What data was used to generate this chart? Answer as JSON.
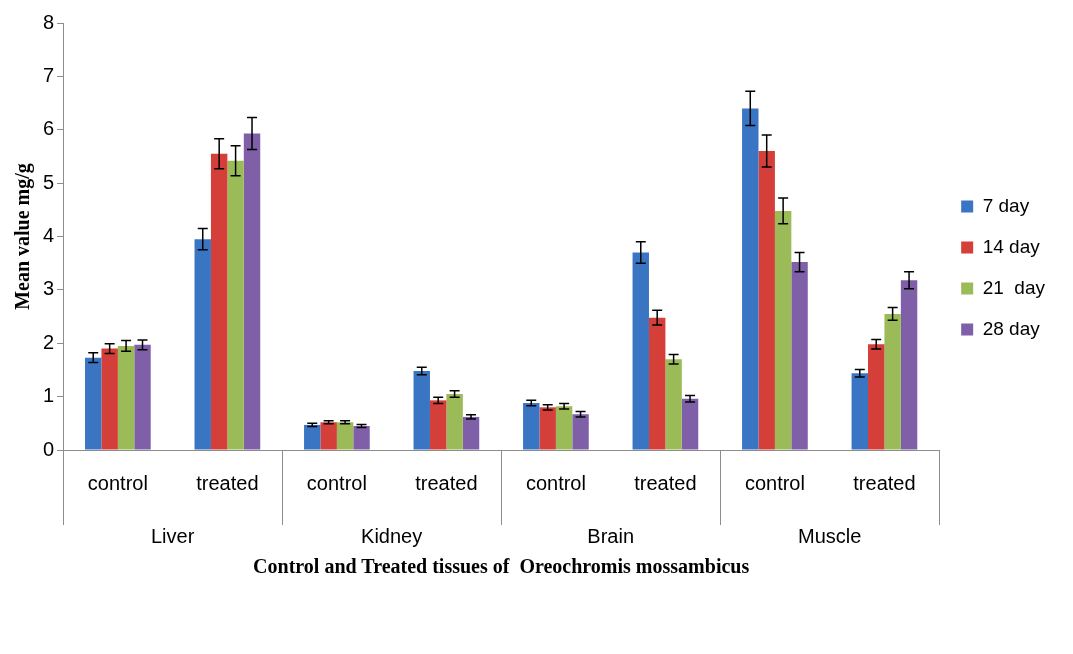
{
  "chart_data": {
    "type": "bar",
    "xlabel": "Control and Treated tissues of  Oreochromis mossambicus",
    "ylabel": "Mean value mg/g",
    "categories": [
      "control",
      "treated",
      "control",
      "treated",
      "control",
      "treated",
      "control",
      "treated"
    ],
    "annotations": [
      "Liver",
      "Kidney",
      "Brain",
      "Muscle"
    ],
    "series": [
      {
        "name": "7 day",
        "color": "#3a75c4",
        "values": [
          1.73,
          3.95,
          0.47,
          1.48,
          0.88,
          3.7,
          6.4,
          1.44
        ],
        "errors": [
          0.09,
          0.2,
          0.03,
          0.07,
          0.05,
          0.2,
          0.32,
          0.07
        ]
      },
      {
        "name": "14 day",
        "color": "#d43f3a",
        "values": [
          1.9,
          5.55,
          0.52,
          0.93,
          0.8,
          2.48,
          5.6,
          1.98
        ],
        "errors": [
          0.09,
          0.28,
          0.03,
          0.06,
          0.05,
          0.14,
          0.3,
          0.09
        ]
      },
      {
        "name": "21  day",
        "color": "#9bbb59",
        "values": [
          1.95,
          5.42,
          0.52,
          1.05,
          0.82,
          1.7,
          4.48,
          2.55
        ],
        "errors": [
          0.1,
          0.28,
          0.03,
          0.06,
          0.05,
          0.09,
          0.24,
          0.12
        ]
      },
      {
        "name": "28 day",
        "color": "#7f5fa8",
        "values": [
          1.97,
          5.93,
          0.45,
          0.62,
          0.67,
          0.96,
          3.52,
          3.18
        ],
        "errors": [
          0.09,
          0.3,
          0.03,
          0.04,
          0.05,
          0.06,
          0.18,
          0.16
        ]
      }
    ],
    "ylim": [
      0,
      8
    ],
    "yticks": [
      0,
      1,
      2,
      3,
      4,
      5,
      6,
      7,
      8
    ],
    "grid": false,
    "legend": "right"
  }
}
